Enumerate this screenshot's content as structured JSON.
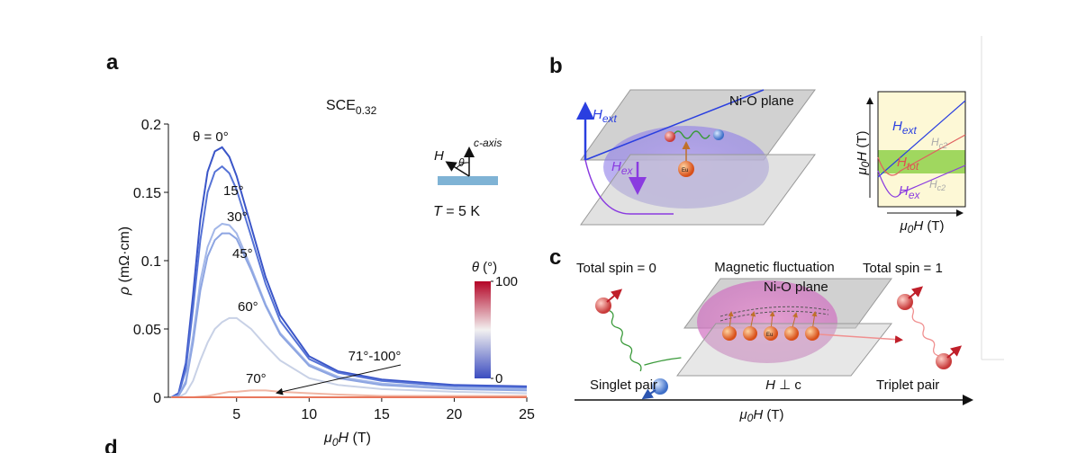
{
  "panel_labels": [
    "a",
    "b",
    "c",
    "d"
  ],
  "chart_data": {
    "type": "line",
    "title": "SCE",
    "title_subscript": "0.32",
    "y_label": {
      "symbol": "ρ",
      "unit": "(mΩ·cm)"
    },
    "x_label": {
      "symbol": "μ",
      "subscript": "0",
      "variable": "H",
      "unit": "(T)"
    },
    "x": [
      0.5,
      1,
      1.5,
      2,
      2.5,
      3,
      3.5,
      4,
      4.5,
      5,
      6,
      7,
      8,
      10,
      12,
      15,
      20,
      25
    ],
    "series": [
      {
        "name": "θ = 0°",
        "color": "#3a55c8",
        "values": [
          0,
          0.003,
          0.025,
          0.075,
          0.13,
          0.165,
          0.18,
          0.183,
          0.176,
          0.162,
          0.125,
          0.088,
          0.06,
          0.03,
          0.019,
          0.013,
          0.009,
          0.008
        ]
      },
      {
        "name": "15°",
        "color": "#5673d6",
        "values": [
          0,
          0.002,
          0.02,
          0.065,
          0.115,
          0.15,
          0.165,
          0.169,
          0.164,
          0.152,
          0.118,
          0.083,
          0.056,
          0.028,
          0.018,
          0.012,
          0.008,
          0.007
        ]
      },
      {
        "name": "30°",
        "color": "#a3b7e8",
        "values": [
          0,
          0.001,
          0.012,
          0.045,
          0.085,
          0.11,
          0.123,
          0.127,
          0.126,
          0.12,
          0.095,
          0.068,
          0.047,
          0.024,
          0.015,
          0.01,
          0.007,
          0.006
        ]
      },
      {
        "name": "45°",
        "color": "#8da5e2",
        "values": [
          0,
          0.001,
          0.01,
          0.04,
          0.078,
          0.103,
          0.115,
          0.12,
          0.12,
          0.116,
          0.093,
          0.067,
          0.046,
          0.023,
          0.014,
          0.009,
          0.006,
          0.005
        ]
      },
      {
        "name": "60°",
        "color": "#c8d1e6",
        "values": [
          0,
          0,
          0.003,
          0.012,
          0.027,
          0.04,
          0.05,
          0.055,
          0.058,
          0.058,
          0.05,
          0.038,
          0.027,
          0.014,
          0.009,
          0.006,
          0.004,
          0.003
        ]
      },
      {
        "name": "70°",
        "color": "#f0b6a4",
        "values": [
          0,
          0,
          0,
          0,
          0.0005,
          0.001,
          0.002,
          0.003,
          0.004,
          0.004,
          0.005,
          0.005,
          0.004,
          0.003,
          0.002,
          0.001,
          0.001,
          0.001
        ]
      },
      {
        "name": "71°-100°",
        "color": "#e8775c",
        "values": [
          0,
          0,
          0,
          0,
          0,
          0,
          0,
          0,
          0,
          0,
          0,
          0,
          0,
          0,
          0,
          0,
          0,
          0
        ]
      }
    ],
    "xlim": [
      0.3,
      25
    ],
    "xticks": [
      5,
      10,
      15,
      20,
      25
    ],
    "ylim": [
      0,
      0.2
    ],
    "yticks": [
      0,
      0.05,
      0.1,
      0.15,
      0.2
    ],
    "inset": {
      "axis_label": "c-axis",
      "field": "H",
      "angle": "θ",
      "temperature_symbol": "T",
      "temperature": "= 5 K"
    },
    "colorbar": {
      "label_symbol": "θ",
      "label_unit": "(°)",
      "ticks": [
        0,
        100
      ]
    }
  },
  "diagram_b": {
    "plane": "Ni-O plane",
    "ext_symbol": "H",
    "ext_sub": "ext",
    "ex_symbol": "H",
    "ex_sub": "ex",
    "ion": "Eu",
    "inset": {
      "axis_symbol": "μ",
      "axis_sub": "0",
      "axis_var": "H",
      "axis_unit": "(T)",
      "lines": [
        {
          "symbol": "H",
          "sub": "ext"
        },
        {
          "symbol": "H",
          "sub": "c2"
        },
        {
          "symbol": "H",
          "sub": "tot"
        },
        {
          "symbol": "H",
          "sub": "ex"
        },
        {
          "symbol": "H",
          "sub": "c2"
        }
      ]
    }
  },
  "diagram_c": {
    "left_title": "Total spin = 0",
    "middle_title": "Magnetic fluctuation",
    "right_title": "Total spin = 1",
    "plane": "Ni-O plane",
    "ion": "Eu",
    "left_caption": "Singlet pair",
    "middle_caption_symbol": "H",
    "middle_caption_rest": " ⊥ c",
    "right_caption": "Triplet pair",
    "axis_symbol": "μ",
    "axis_sub": "0",
    "axis_var": "H",
    "axis_unit": "(T)"
  }
}
